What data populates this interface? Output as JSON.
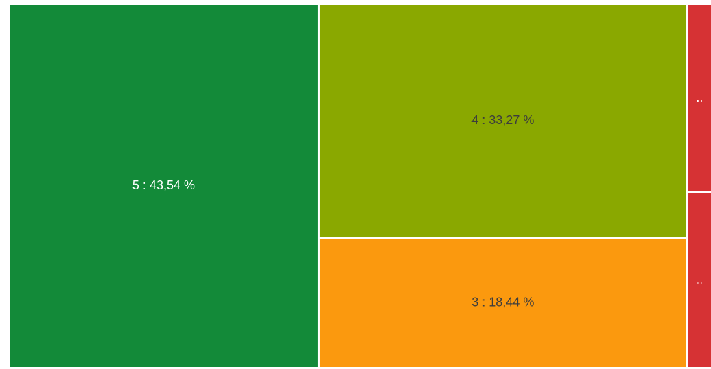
{
  "chart_data": {
    "type": "treemap",
    "labels": [
      "5 : 43,54 %",
      "4 : 33,27 %",
      "3 : 18,44 %",
      "..",
      ".."
    ],
    "values": [
      43.54,
      33.27,
      18.44,
      2.46,
      2.29
    ],
    "colors": [
      "#138a39",
      "#8aa800",
      "#fb990e",
      "#d63234",
      "#d63234"
    ],
    "text_colors": [
      "#ffffff",
      "#3d3d3d",
      "#3d3d3d",
      "#ffffff",
      "#ffffff"
    ]
  }
}
